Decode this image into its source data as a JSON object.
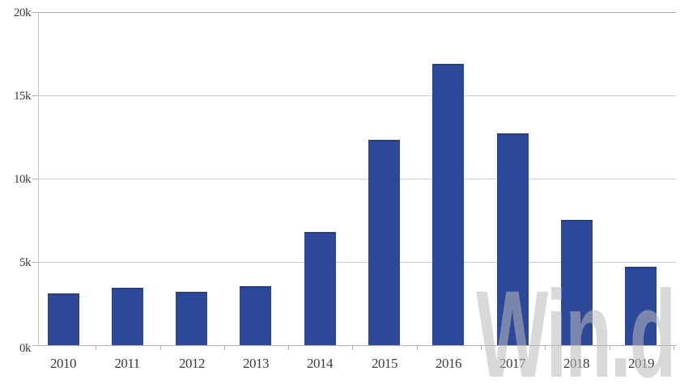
{
  "chart_data": {
    "type": "bar",
    "title": "",
    "xlabel": "",
    "ylabel": "",
    "categories": [
      "2010",
      "2011",
      "2012",
      "2013",
      "2014",
      "2015",
      "2016",
      "2017",
      "2018",
      "2019"
    ],
    "values": [
      3100,
      3450,
      3200,
      3550,
      6800,
      12350,
      16900,
      12700,
      7500,
      4700
    ],
    "ylim": [
      0,
      20000
    ],
    "yticks": [
      0,
      5000,
      10000,
      15000,
      20000
    ],
    "ytick_labels": [
      "0k",
      "5k",
      "10k",
      "15k",
      "20k"
    ],
    "grid": true,
    "legend": "none",
    "bar_color": "#2e4899",
    "bar_edge_color": "#253e88",
    "gridline_color": "#cdcdcd",
    "top_gridline_color": "#a9a9a9",
    "axis_line_color": "#b3b3b3",
    "label_color": "#3b3b3b",
    "watermark": "Win.d",
    "watermark_color": "rgba(186,186,186,0.55)"
  }
}
